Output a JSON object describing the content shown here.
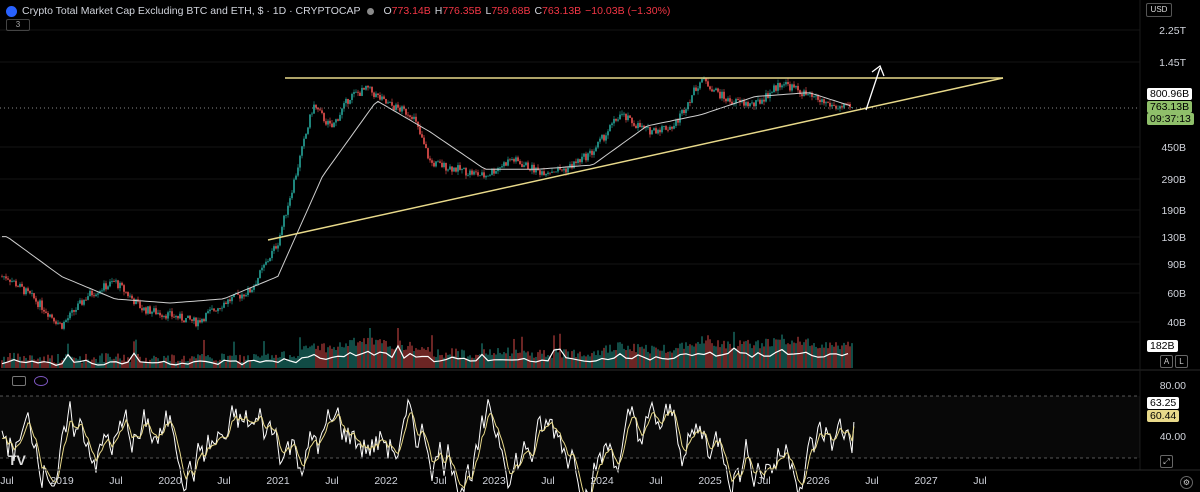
{
  "header": {
    "title": "Crypto Total Market Cap Excluding BTC and ETH, $ · 1D · CRYPTOCAP",
    "open_key": "O",
    "open": "773.14B",
    "high_key": "H",
    "high": "776.35B",
    "low_key": "L",
    "low": "759.68B",
    "close_key": "C",
    "close": "763.13B",
    "change": "−10.03B (−1.30%)",
    "indicator_badge": "3"
  },
  "currency_button": "USD",
  "price_axis": {
    "labels": [
      "2.25T",
      "1.45T",
      "800.96B",
      "763.13B",
      "450B",
      "290B",
      "190B",
      "130B",
      "90B",
      "60B",
      "40B",
      "182B"
    ]
  },
  "price_tags": {
    "resistance": "800.96B",
    "last_price": "763.13B",
    "countdown": "09:37:13",
    "volume": "182B"
  },
  "oscillator_axis": {
    "labels": [
      "80.00",
      "40.00"
    ],
    "value_1": "63.25",
    "value_2": "60.44"
  },
  "time_axis": {
    "labels": [
      "Jul",
      "2019",
      "Jul",
      "2020",
      "Jul",
      "2021",
      "Jul",
      "2022",
      "Jul",
      "2023",
      "Jul",
      "2024",
      "Jul",
      "2025",
      "Jul",
      "2026",
      "Jul",
      "2027",
      "Jul"
    ]
  },
  "buttons": {
    "auto": "A",
    "log": "L"
  },
  "colors": {
    "background": "#000000",
    "up": "#26a69a",
    "down": "#ef5350",
    "trendline": "#e8d98a",
    "ma": "#cfcfcf",
    "last_price": "#8fbf6a"
  },
  "chart_data": {
    "type": "candlestick",
    "scale": "log",
    "series": [
      {
        "name": "Crypto Total Market Cap Excluding BTC and ETH",
        "x": [
          "2018-07",
          "2018-10",
          "2019-01",
          "2019-04",
          "2019-07",
          "2019-10",
          "2020-01",
          "2020-04",
          "2020-07",
          "2020-10",
          "2021-01",
          "2021-03",
          "2021-05",
          "2021-07",
          "2021-09",
          "2021-11",
          "2022-01",
          "2022-04",
          "2022-06",
          "2022-09",
          "2022-12",
          "2023-03",
          "2023-06",
          "2023-09",
          "2023-12",
          "2024-03",
          "2024-06",
          "2024-09",
          "2024-12",
          "2025-03",
          "2025-06",
          "2025-09",
          "2025-12",
          "2026-03",
          "2026-05"
        ],
        "values": [
          75,
          55,
          38,
          58,
          70,
          48,
          44,
          40,
          52,
          62,
          120,
          300,
          800,
          580,
          900,
          1000,
          820,
          700,
          360,
          330,
          300,
          380,
          320,
          330,
          420,
          700,
          560,
          600,
          1150,
          850,
          800,
          1100,
          900,
          780,
          763
        ]
      },
      {
        "name": "Moving Average",
        "x": [
          "2018-07",
          "2019-01",
          "2019-07",
          "2020-01",
          "2020-07",
          "2021-01",
          "2021-06",
          "2021-12",
          "2022-06",
          "2022-12",
          "2023-06",
          "2023-12",
          "2024-06",
          "2024-12",
          "2025-06",
          "2025-12",
          "2026-05"
        ],
        "values": [
          130,
          75,
          55,
          52,
          55,
          75,
          300,
          850,
          550,
          330,
          330,
          350,
          600,
          700,
          900,
          950,
          780
        ]
      }
    ],
    "volume": {
      "last": "182B"
    },
    "oscillator": {
      "range": [
        0,
        100
      ],
      "levels": [
        80,
        40
      ],
      "last": [
        63.25,
        60.44
      ]
    },
    "ylim": [
      35,
      2400
    ]
  }
}
